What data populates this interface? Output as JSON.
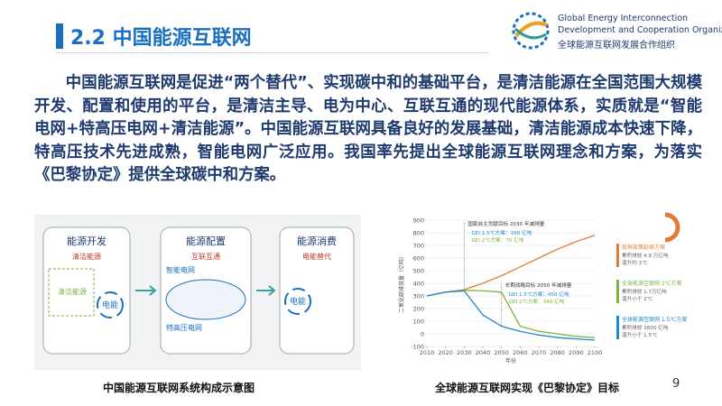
{
  "header": {
    "title": "2.2 中国能源互联网",
    "logo_lines": [
      "Global Energy Interconnection",
      "Development and Cooperation Organization",
      "全球能源互联网发展合作组织"
    ]
  },
  "body": {
    "paragraph": "中国能源互联网是促进“两个替代”、实现碳中和的基础平台，是清洁能源在全国范围大规模开发、配置和使用的平台，是清洁主导、电为中心、互联互通的现代能源体系，实质就是“智能电网+特高压电网+清洁能源”。中国能源互联网具备良好的发展基础，清洁能源成本快速下降，特高压技术先进成熟，智能电网广泛应用。我国率先提出全球能源互联网理念和方案，为落实《巴黎协定》提供全球碳中和方案。"
  },
  "left_figure": {
    "panels": [
      {
        "title": "能源开发",
        "subtitle": "清洁能源",
        "inner": [
          "清洁能源",
          "电能"
        ]
      },
      {
        "title": "能源配置",
        "subtitle": "互联互通",
        "inner": [
          "智能电网",
          "特高压电网"
        ]
      },
      {
        "title": "能源消费",
        "subtitle": "电能替代",
        "inner": [
          "电能"
        ]
      }
    ],
    "caption": "中国能源互联网系统构成示意图"
  },
  "right_figure": {
    "chart": {
      "type": "line",
      "ylabel": "二氧化碳排放量（亿吨）",
      "xlabel": "年份",
      "x": [
        2010,
        2020,
        2030,
        2040,
        2050,
        2060,
        2070,
        2080,
        2090,
        2100
      ],
      "series": [
        {
          "color": "#e07b39",
          "values": [
            300,
            330,
            350,
            400,
            460,
            530,
            600,
            670,
            730,
            780
          ]
        },
        {
          "color": "#7cb342",
          "values": [
            300,
            330,
            345,
            340,
            330,
            60,
            20,
            0,
            -20,
            -30
          ]
        },
        {
          "color": "#1e88c8",
          "values": [
            300,
            330,
            340,
            150,
            60,
            20,
            -10,
            -30,
            -40,
            -50
          ]
        }
      ],
      "xlim": [
        2010,
        2100
      ],
      "xticks": [
        2010,
        2020,
        2030,
        2040,
        2050,
        2060,
        2070,
        2080,
        2090,
        2100
      ],
      "ylim": [
        -100,
        900
      ],
      "yticks": [
        -100,
        0,
        100,
        200,
        300,
        400,
        500,
        600,
        700,
        800,
        900
      ],
      "annotations": [
        "国家自主贡献目标 2030 年减排量",
        "GEI 1.5℃方案：160 亿吨",
        "GEI 2℃方案：70 亿吨",
        "长期战略目标 2050 年减排量",
        "GEI 1.5℃方案：450 亿吨",
        "GEI 2℃方案：340 亿吨"
      ],
      "side_legend": [
        {
          "name": "现有政策延续方案",
          "lines": [
            "累积排放 4.8 万亿吨",
            "温升约 3℃"
          ],
          "color": "#e07b39"
        },
        {
          "name": "全球能源互联网 2℃方案",
          "lines": [
            "累积排放 1.7万亿吨",
            "温升小于 2℃"
          ],
          "color": "#7cb342"
        },
        {
          "name": "全球能源互联网 1.5℃方案",
          "lines": [
            "累积排放 3600 亿吨",
            "温升小于 1.5℃"
          ],
          "color": "#1e88c8"
        }
      ]
    },
    "caption": "全球能源互联网实现《巴黎协定》目标"
  },
  "footer": {
    "page_number": "9"
  }
}
